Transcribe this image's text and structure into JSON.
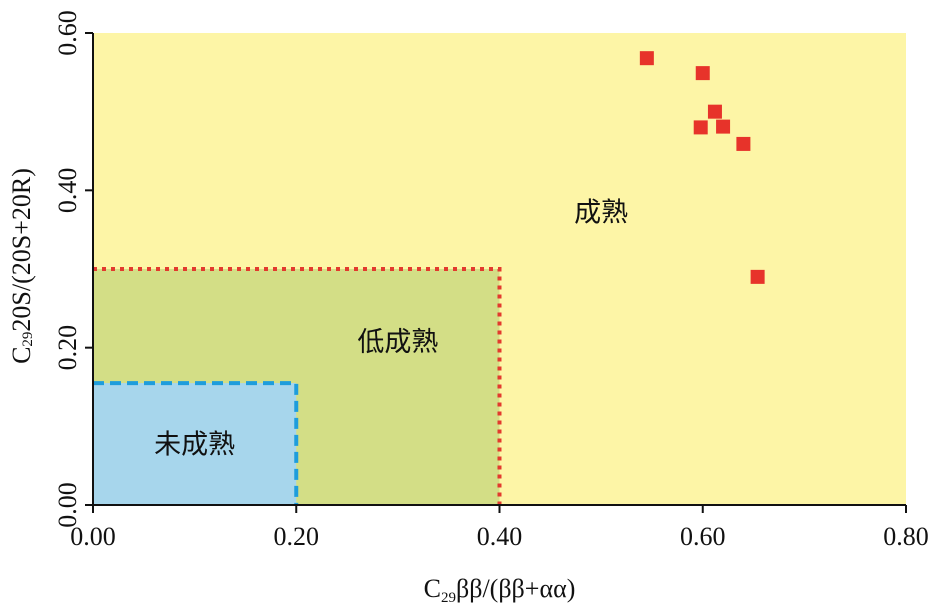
{
  "chart_data": {
    "type": "scatter",
    "title": "",
    "xlabel": {
      "prefix": "C",
      "sub": "29",
      "rest": "ββ/(ββ+αα)"
    },
    "ylabel": {
      "prefix": "C",
      "sub": "29",
      "rest": "20S/(20S+20R)"
    },
    "xlim": [
      0,
      0.8
    ],
    "ylim": [
      0,
      0.6
    ],
    "xticks": [
      0,
      0.2,
      0.4,
      0.6,
      0.8
    ],
    "yticks": [
      0,
      0.2,
      0.4,
      0.6
    ],
    "xtick_labels": [
      "0.00",
      "0.20",
      "0.40",
      "0.60",
      "0.80"
    ],
    "ytick_labels": [
      "0.00",
      "0.20",
      "0.40",
      "0.60"
    ],
    "grid": false,
    "legend": "none",
    "points": [
      {
        "x": 0.545,
        "y": 0.568
      },
      {
        "x": 0.6,
        "y": 0.549
      },
      {
        "x": 0.612,
        "y": 0.5
      },
      {
        "x": 0.598,
        "y": 0.48
      },
      {
        "x": 0.62,
        "y": 0.481
      },
      {
        "x": 0.64,
        "y": 0.459
      },
      {
        "x": 0.654,
        "y": 0.29
      }
    ],
    "regions": [
      {
        "label": "成熟",
        "x": [
          0,
          0.8
        ],
        "y": [
          0,
          0.6
        ],
        "fill": "#fdf5a6",
        "label_at": [
          0.5,
          0.37
        ]
      },
      {
        "label": "低成熟",
        "x": [
          0,
          0.4
        ],
        "y": [
          0,
          0.3
        ],
        "fill": "#d3de86",
        "border": "#e23a2e",
        "border_style": "dotted",
        "label_at": [
          0.3,
          0.205
        ]
      },
      {
        "label": "未成熟",
        "x": [
          0,
          0.2
        ],
        "y": [
          0,
          0.155
        ],
        "fill": "#a7d6ec",
        "border": "#1e9ddc",
        "border_style": "dashed",
        "label_at": [
          0.1,
          0.075
        ]
      }
    ],
    "marker_color": "#e7332a"
  }
}
